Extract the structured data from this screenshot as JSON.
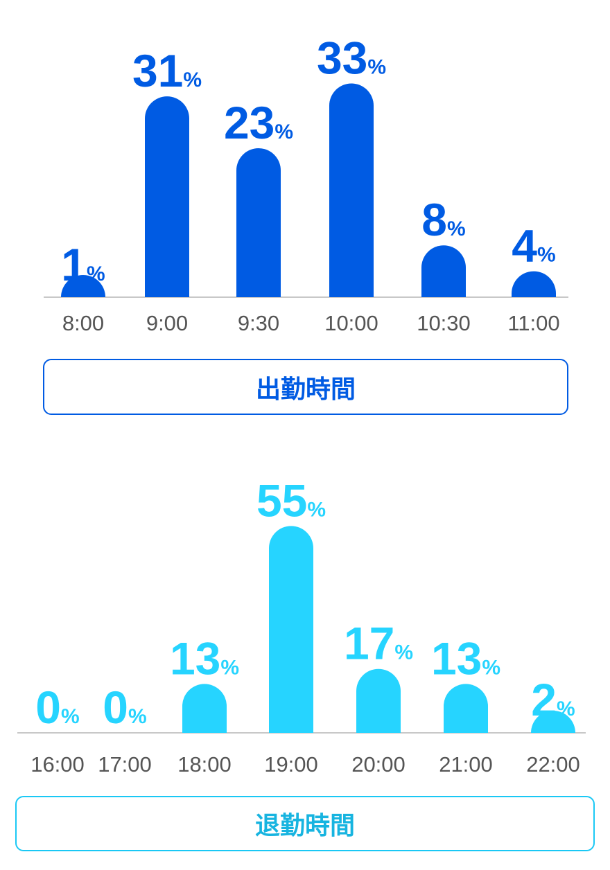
{
  "chart_data": [
    {
      "type": "bar",
      "categories": [
        "8:00",
        "9:00",
        "9:30",
        "10:00",
        "10:30",
        "11:00"
      ],
      "values": [
        1,
        31,
        23,
        33,
        8,
        4
      ],
      "unit": "%",
      "label": "出勤時間",
      "color": "#005be3"
    },
    {
      "type": "bar",
      "categories": [
        "16:00",
        "17:00",
        "18:00",
        "19:00",
        "20:00",
        "21:00",
        "22:00"
      ],
      "values": [
        0,
        0,
        13,
        55,
        17,
        13,
        2
      ],
      "unit": "%",
      "label": "退勤時間",
      "color": "#26d4ff"
    }
  ]
}
